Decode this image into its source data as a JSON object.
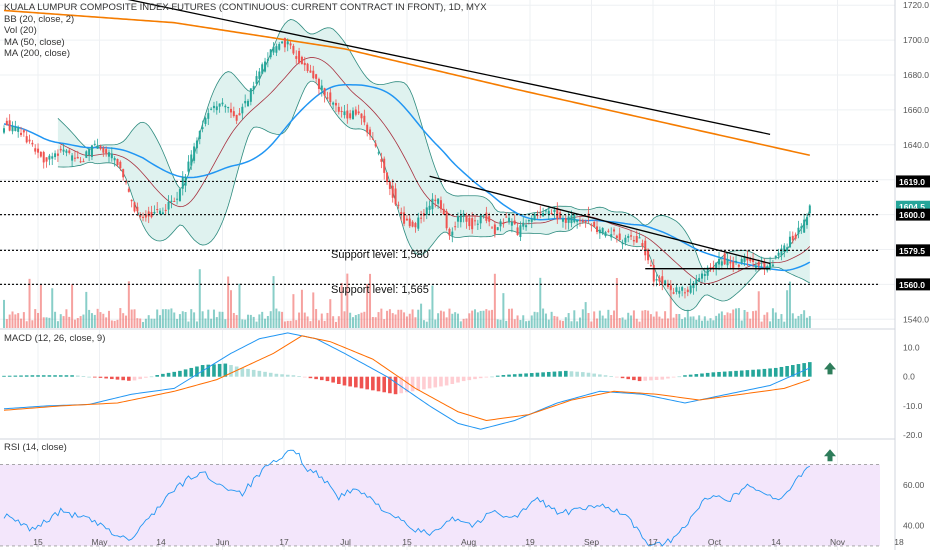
{
  "colors": {
    "bull": "#26a69a",
    "bear": "#ef5350",
    "bb": "#2e8b7f",
    "bb_fill": "#dff2ef",
    "ma50": "#2196f3",
    "ma200": "#f57c00",
    "ma20": "#a83240",
    "macd_line": "#2196f3",
    "signal_line": "#ff6d00",
    "rsi_line": "#2196f3",
    "rsi_band": "#f3e6fb",
    "grid": "#eef0f3",
    "arrow": "#2e7d5b"
  },
  "header": {
    "title": "KUALA LUMPUR COMPOSITE INDEX FUTURES (CONTINUOUS: CURRENT CONTRACT IN FRONT), 1D, MYX",
    "indicators": [
      "BB (20, close, 2)",
      "Vol (20)",
      "MA (50, close)",
      "MA (200, close)"
    ]
  },
  "macd_pane": {
    "legend": "MACD (12, 26, close, 9)"
  },
  "rsi_pane": {
    "legend": "RSI (14, close)"
  },
  "annotations": {
    "support_1580": "Support level: 1,580",
    "support_1565": "Support level: 1,565"
  },
  "chart_data": [
    {
      "type": "candlestick",
      "title": "KUALA LUMPUR COMPOSITE INDEX FUTURES (CONTINUOUS: CURRENT CONTRACT IN FRONT), 1D, MYX",
      "x_tick_labels": [
        "15",
        "May",
        "14",
        "Jun",
        "17",
        "Jul",
        "15",
        "Aug",
        "19",
        "Sep",
        "17",
        "Oct",
        "14",
        "Nov",
        "18"
      ],
      "y_tick_labels": [
        "1720.0",
        "1700.0",
        "1680.0",
        "1660.0",
        "1640.0",
        "1620.0",
        "1600.0",
        "1580.0",
        "1560.0",
        "1540.0"
      ],
      "ylim": [
        1535,
        1723
      ],
      "price_close_path": [
        [
          0,
          1652
        ],
        [
          6,
          1647
        ],
        [
          14,
          1632
        ],
        [
          20,
          1636
        ],
        [
          27,
          1630
        ],
        [
          32,
          1640
        ],
        [
          38,
          1633
        ],
        [
          42,
          1622
        ],
        [
          45,
          1606
        ],
        [
          48,
          1598
        ],
        [
          52,
          1600
        ],
        [
          57,
          1604
        ],
        [
          61,
          1610
        ],
        [
          65,
          1628
        ],
        [
          69,
          1650
        ],
        [
          73,
          1660
        ],
        [
          78,
          1664
        ],
        [
          82,
          1656
        ],
        [
          86,
          1666
        ],
        [
          89,
          1678
        ],
        [
          93,
          1690
        ],
        [
          97,
          1700
        ],
        [
          101,
          1696
        ],
        [
          105,
          1686
        ],
        [
          109,
          1678
        ],
        [
          113,
          1670
        ],
        [
          117,
          1662
        ],
        [
          121,
          1656
        ],
        [
          125,
          1660
        ],
        [
          129,
          1646
        ],
        [
          133,
          1630
        ],
        [
          137,
          1612
        ],
        [
          141,
          1596
        ],
        [
          145,
          1594
        ],
        [
          149,
          1604
        ],
        [
          153,
          1610
        ],
        [
          157,
          1588
        ],
        [
          161,
          1600
        ],
        [
          165,
          1594
        ],
        [
          169,
          1600
        ],
        [
          173,
          1590
        ],
        [
          177,
          1598
        ],
        [
          181,
          1590
        ],
        [
          185,
          1598
        ],
        [
          189,
          1600
        ],
        [
          193,
          1603
        ],
        [
          197,
          1596
        ],
        [
          201,
          1598
        ],
        [
          205,
          1598
        ],
        [
          209,
          1590
        ],
        [
          213,
          1590
        ],
        [
          217,
          1586
        ],
        [
          221,
          1586
        ],
        [
          225,
          1584
        ],
        [
          229,
          1564
        ],
        [
          233,
          1560
        ],
        [
          237,
          1556
        ],
        [
          241,
          1558
        ],
        [
          245,
          1562
        ],
        [
          249,
          1570
        ],
        [
          253,
          1575
        ],
        [
          257,
          1571
        ],
        [
          261,
          1574
        ],
        [
          265,
          1572
        ],
        [
          269,
          1570
        ],
        [
          273,
          1576
        ],
        [
          277,
          1585
        ],
        [
          281,
          1592
        ],
        [
          284,
          1604.5
        ]
      ],
      "indicators": [
        "BB (20, close, 2)",
        "Vol (20)",
        "MA (50, close)",
        "MA (200, close)"
      ],
      "price_markers": [
        1619.0,
        1604.5,
        1600.0,
        1579.5,
        1560.0
      ],
      "horizontal_dotted_levels": [
        1619.0,
        1600.0,
        1579.5,
        1560.0
      ],
      "support_labels": [
        "Support level: 1,580",
        "Support level: 1,565"
      ],
      "trendlines": [
        {
          "from": [
            30,
            1728
          ],
          "to": [
            270,
            1646
          ]
        },
        {
          "from": [
            150,
            1622
          ],
          "to": [
            270,
            1572
          ]
        },
        {
          "from": [
            226,
            1569
          ],
          "to": [
            270,
            1569
          ]
        }
      ],
      "volume_note": "Volume bars along the bottom of the price pane (unlabeled scale)"
    },
    {
      "type": "bar",
      "title": "MACD (12, 26, close, 9)",
      "y_tick_labels": [
        "10.0",
        "0.0",
        "-10.0",
        "-20.0"
      ],
      "ylim": [
        -21,
        16
      ],
      "macd_line_path": [
        [
          0,
          -11
        ],
        [
          15,
          -10
        ],
        [
          30,
          -9.5
        ],
        [
          45,
          -6
        ],
        [
          60,
          -4
        ],
        [
          70,
          2
        ],
        [
          80,
          8
        ],
        [
          90,
          13
        ],
        [
          100,
          15
        ],
        [
          110,
          13
        ],
        [
          120,
          8
        ],
        [
          135,
          0
        ],
        [
          150,
          -10
        ],
        [
          160,
          -16
        ],
        [
          168,
          -18
        ],
        [
          180,
          -15
        ],
        [
          195,
          -9
        ],
        [
          210,
          -5
        ],
        [
          225,
          -6
        ],
        [
          240,
          -9
        ],
        [
          255,
          -6
        ],
        [
          270,
          -3
        ],
        [
          284,
          3
        ]
      ],
      "signal_line_path": [
        [
          0,
          -11.5
        ],
        [
          20,
          -10
        ],
        [
          40,
          -9
        ],
        [
          60,
          -5
        ],
        [
          75,
          -1
        ],
        [
          95,
          8
        ],
        [
          105,
          14
        ],
        [
          115,
          12
        ],
        [
          130,
          6
        ],
        [
          145,
          -4
        ],
        [
          160,
          -12
        ],
        [
          170,
          -15
        ],
        [
          185,
          -13
        ],
        [
          200,
          -8
        ],
        [
          215,
          -5
        ],
        [
          230,
          -6
        ],
        [
          245,
          -8
        ],
        [
          260,
          -6
        ],
        [
          275,
          -4
        ],
        [
          284,
          -1
        ]
      ],
      "histogram_path": [
        [
          0,
          0.3
        ],
        [
          10,
          0.5
        ],
        [
          25,
          0.5
        ],
        [
          35,
          -0.5
        ],
        [
          45,
          -1.5
        ],
        [
          55,
          0.8
        ],
        [
          62,
          2
        ],
        [
          70,
          4
        ],
        [
          78,
          4.5
        ],
        [
          84,
          3
        ],
        [
          90,
          2
        ],
        [
          96,
          1
        ],
        [
          102,
          0.5
        ],
        [
          108,
          -0.5
        ],
        [
          114,
          -1.5
        ],
        [
          120,
          -3
        ],
        [
          126,
          -4
        ],
        [
          132,
          -5
        ],
        [
          138,
          -6
        ],
        [
          144,
          -5
        ],
        [
          150,
          -4
        ],
        [
          156,
          -3
        ],
        [
          162,
          -1.5
        ],
        [
          168,
          -0.5
        ],
        [
          175,
          0.5
        ],
        [
          182,
          1
        ],
        [
          190,
          1.5
        ],
        [
          198,
          2
        ],
        [
          205,
          1.5
        ],
        [
          212,
          0.5
        ],
        [
          218,
          -0.5
        ],
        [
          224,
          -1.5
        ],
        [
          232,
          -1
        ],
        [
          240,
          0.5
        ],
        [
          250,
          1.5
        ],
        [
          258,
          2
        ],
        [
          266,
          2.5
        ],
        [
          272,
          3
        ],
        [
          278,
          4
        ],
        [
          284,
          5
        ]
      ],
      "arrow_direction": "up"
    },
    {
      "type": "line",
      "title": "RSI (14, close)",
      "y_tick_labels": [
        "60.00",
        "40.00"
      ],
      "ylim": [
        28,
        82
      ],
      "band": [
        30,
        70
      ],
      "rsi_path": [
        [
          0,
          45
        ],
        [
          10,
          38
        ],
        [
          20,
          47
        ],
        [
          30,
          43
        ],
        [
          40,
          35
        ],
        [
          45,
          33
        ],
        [
          50,
          42
        ],
        [
          58,
          55
        ],
        [
          65,
          63
        ],
        [
          70,
          66
        ],
        [
          76,
          60
        ],
        [
          84,
          56
        ],
        [
          92,
          68
        ],
        [
          98,
          73
        ],
        [
          102,
          78
        ],
        [
          107,
          68
        ],
        [
          112,
          64
        ],
        [
          118,
          54
        ],
        [
          124,
          58
        ],
        [
          130,
          52
        ],
        [
          138,
          44
        ],
        [
          144,
          38
        ],
        [
          150,
          36
        ],
        [
          158,
          44
        ],
        [
          166,
          40
        ],
        [
          172,
          47
        ],
        [
          180,
          44
        ],
        [
          188,
          53
        ],
        [
          196,
          46
        ],
        [
          204,
          48
        ],
        [
          212,
          50
        ],
        [
          220,
          44
        ],
        [
          226,
          32
        ],
        [
          232,
          30
        ],
        [
          238,
          36
        ],
        [
          244,
          48
        ],
        [
          250,
          56
        ],
        [
          256,
          53
        ],
        [
          262,
          60
        ],
        [
          268,
          56
        ],
        [
          274,
          52
        ],
        [
          280,
          64
        ],
        [
          284,
          70
        ]
      ],
      "arrow_direction": "up"
    }
  ]
}
